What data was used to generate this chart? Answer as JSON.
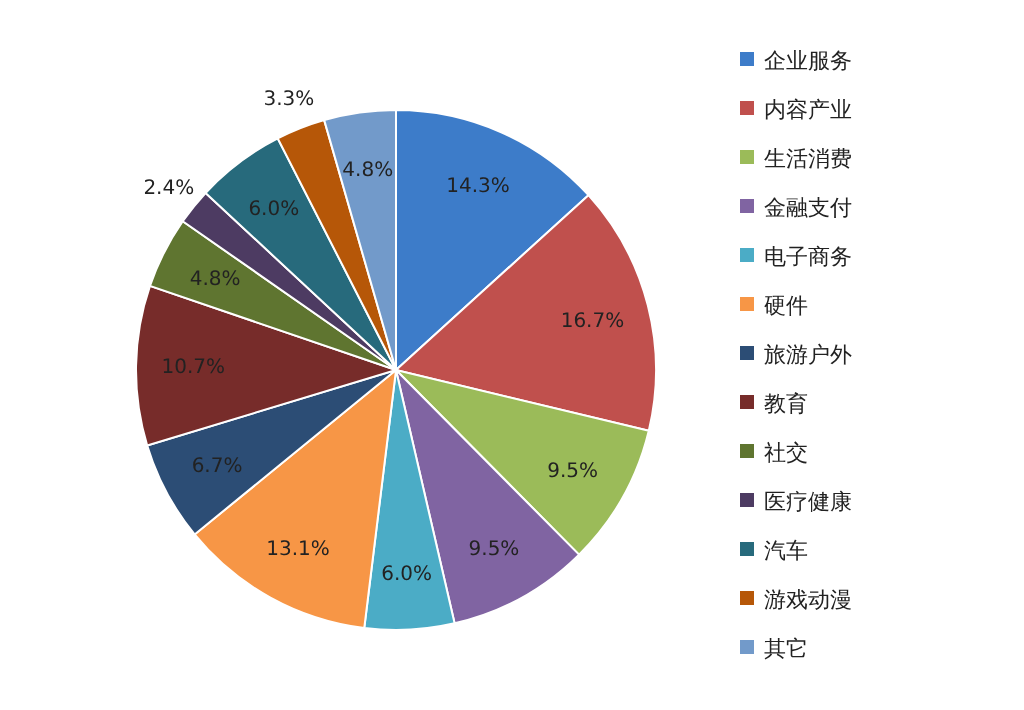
{
  "chart_data": {
    "type": "pie",
    "categories": [
      "企业服务",
      "内容产业",
      "生活消费",
      "金融支付",
      "电子商务",
      "硬件",
      "旅游户外",
      "教育",
      "社交",
      "医疗健康",
      "汽车",
      "游戏动漫",
      "其它"
    ],
    "values": [
      14.3,
      16.7,
      9.5,
      9.5,
      6.0,
      13.1,
      6.7,
      10.7,
      4.8,
      2.4,
      6.0,
      3.3,
      4.8
    ],
    "value_labels": [
      "14.3%",
      "16.7%",
      "9.5%",
      "9.5%",
      "6.0%",
      "13.1%",
      "6.7%",
      "10.7%",
      "4.8%",
      "2.4%",
      "6.0%",
      "3.3%",
      "4.8%"
    ],
    "colors": [
      "#3d7cc9",
      "#c0504d",
      "#9bbb59",
      "#8064a2",
      "#4bacc6",
      "#f79646",
      "#2c4d75",
      "#772c2a",
      "#5f7530",
      "#4d3b62",
      "#276a7c",
      "#b65708",
      "#729aca"
    ],
    "legend": "right"
  }
}
